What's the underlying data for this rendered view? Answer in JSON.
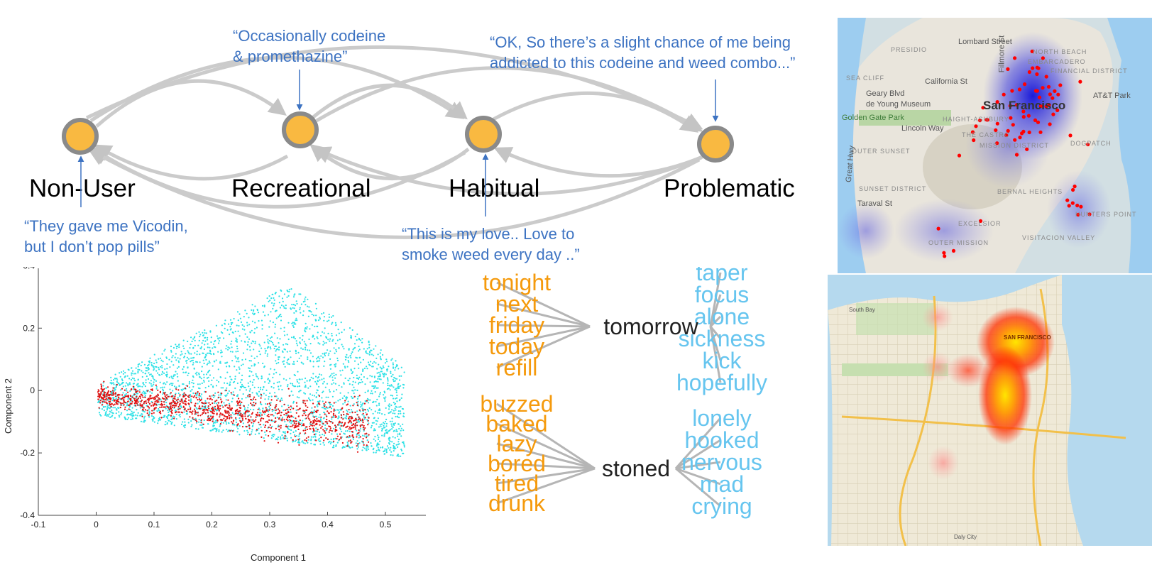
{
  "states": [
    {
      "label": "Non-User"
    },
    {
      "label": "Recreational"
    },
    {
      "label": "Habitual"
    },
    {
      "label": "Problematic"
    }
  ],
  "quotes": {
    "recreational": [
      "“Occasionally codeine",
      "& promethazine”"
    ],
    "problematic": [
      "“OK, So there’s a slight chance of me being",
      "addicted to this codeine and weed combo...”"
    ],
    "nonuser": [
      "“They gave me Vicodin,",
      "but I don’t pop pills”"
    ],
    "habitual": [
      "“This is my love.. Love to",
      "smoke weed every day ..”"
    ]
  },
  "colors": {
    "node_fill": "#f9b941",
    "node_stroke": "#8a8a8a",
    "edge": "#cbcbcb",
    "quote": "#3d73c2",
    "orange_word": "#f59a0c",
    "blue_word": "#66c5ef",
    "center_word": "#222222",
    "scatter_cyan": "#2de1e6",
    "scatter_red": "#e01010"
  },
  "chart_data": {
    "type": "scatter",
    "xlabel": "Component 1",
    "ylabel": "Component 2",
    "xlim": [
      -0.1,
      0.57
    ],
    "ylim": [
      -0.4,
      0.41
    ],
    "xticks": [
      "-0.1",
      "0",
      "0.1",
      "0.2",
      "0.3",
      "0.4",
      "0.5"
    ],
    "yticks": [
      "0.4",
      "0.2",
      "0",
      "-0.2",
      "-0.4"
    ],
    "xtick_values": [
      -0.1,
      0,
      0.1,
      0.2,
      0.3,
      0.4,
      0.5
    ],
    "ytick_values": [
      0.4,
      0.2,
      0,
      -0.2,
      -0.4
    ],
    "series": [
      {
        "color": "#2de1e6",
        "cluster": "cyan",
        "x_range": [
          0,
          0.56
        ],
        "y_range": [
          -0.2,
          0.4
        ]
      },
      {
        "color": "#e01010",
        "cluster": "red",
        "x_range": [
          0,
          0.48
        ],
        "y_range": [
          -0.21,
          0.02
        ]
      }
    ]
  },
  "word_graphs": [
    {
      "center": "tomorrow",
      "left": [
        "tonight",
        "next",
        "friday",
        "today",
        "refill"
      ],
      "right": [
        "taper",
        "focus",
        "alone",
        "sickness",
        "kick",
        "hopefully"
      ]
    },
    {
      "center": "stoned",
      "left": [
        "buzzed",
        "baked",
        "lazy",
        "bored",
        "tired",
        "drunk"
      ],
      "right": [
        "lonely",
        "hooked",
        "nervous",
        "mad",
        "crying"
      ]
    }
  ],
  "maps": {
    "top": {
      "labels": [
        "Lombard Street",
        "NORTH BEACH",
        "EMBARCADERO",
        "FINANCIAL DISTRICT",
        "PRESIDIO",
        "SEA CLIFF",
        "California St",
        "Geary Blvd",
        "de Young Museum",
        "Golden Gate Park",
        "Lincoln Way",
        "OUTER SUNSET",
        "SUNSET DISTRICT",
        "Taraval St",
        "HAIGHT-ASHBURY",
        "THE CASTRO",
        "MISSION DISTRICT",
        "DOGPATCH",
        "BERNAL HEIGHTS",
        "EXCELSIOR",
        "OUTER MISSION",
        "VISITACION VALLEY",
        "HUNTERS POINT",
        "AT&T Park",
        "San Francisco",
        "Great Hwy",
        "Fillmore St"
      ],
      "badges": [
        "1",
        "1",
        "1",
        "35",
        "35",
        "101",
        "101",
        "280",
        "280",
        "80"
      ]
    },
    "bottom": {
      "labels": [
        "SAN FRANCISCO",
        "South Bay",
        "Daly City"
      ]
    }
  }
}
